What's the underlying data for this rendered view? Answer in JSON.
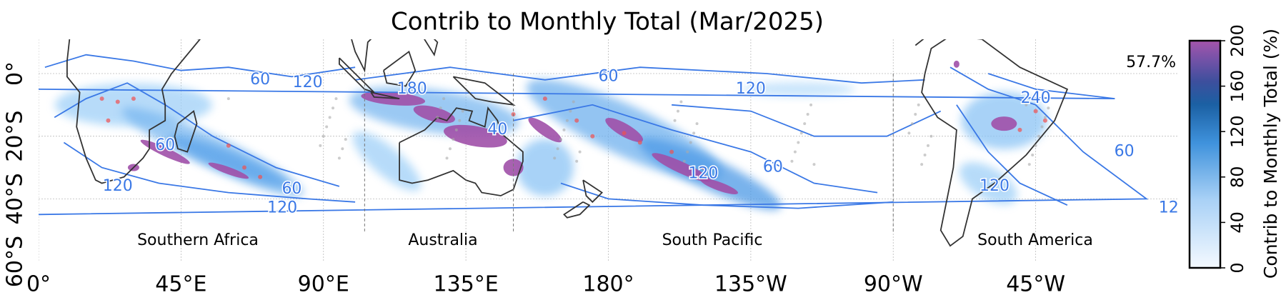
{
  "title": "Contrib to Monthly Total (Mar/2025)",
  "annotation": "57.7%",
  "x_ticks": [
    "0°",
    "45°E",
    "90°E",
    "135°E",
    "180°",
    "135°W",
    "90°W",
    "45°W"
  ],
  "y_ticks": [
    "0°",
    "20°S",
    "40°S",
    "60°S"
  ],
  "regions": [
    "Southern Africa",
    "Australia",
    "South Pacific",
    "South America"
  ],
  "contour_labels": [
    180,
    60,
    120,
    60,
    120,
    60,
    120,
    60,
    120,
    40,
    120,
    60,
    60,
    240,
    120,
    12
  ],
  "colorbar": {
    "label": "Contrib to Monthly Total (%)",
    "lim": [
      0,
      200
    ],
    "ticks": [
      0,
      40,
      80,
      120,
      160,
      200
    ]
  }
}
